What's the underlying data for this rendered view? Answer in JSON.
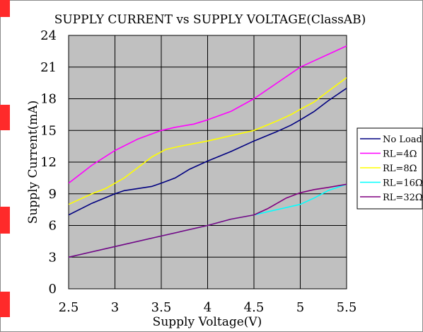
{
  "colors": {
    "plot_bg": "#c0c0c0",
    "grid": "#000000",
    "red_marks": "#ff2a2a"
  },
  "chart_data": {
    "type": "line",
    "title": "SUPPLY CURRENT vs SUPPLY VOLTAGE(ClassAB)",
    "xlabel": "Supply Voltage(V)",
    "ylabel": "Supply Current(mA)",
    "xlim": [
      2.5,
      5.5
    ],
    "ylim": [
      0,
      24
    ],
    "x_ticks": [
      2.5,
      3,
      3.5,
      4,
      4.5,
      5,
      5.5
    ],
    "x_tick_labels": [
      "2.5",
      "3",
      "3.5",
      "4",
      "4.5",
      "5",
      "5.5"
    ],
    "y_ticks": [
      0,
      3,
      6,
      9,
      12,
      15,
      18,
      21,
      24
    ],
    "y_tick_labels": [
      "0",
      "3",
      "6",
      "9",
      "12",
      "15",
      "18",
      "21",
      "24"
    ],
    "grid": true,
    "legend_position": "right",
    "series": [
      {
        "name": "No Load",
        "color": "#000080",
        "points": [
          [
            2.5,
            7.0
          ],
          [
            2.75,
            8.1
          ],
          [
            3.0,
            9.0
          ],
          [
            3.1,
            9.3
          ],
          [
            3.25,
            9.5
          ],
          [
            3.4,
            9.7
          ],
          [
            3.5,
            10.0
          ],
          [
            3.65,
            10.5
          ],
          [
            3.8,
            11.3
          ],
          [
            4.0,
            12.1
          ],
          [
            4.25,
            13.0
          ],
          [
            4.5,
            14.0
          ],
          [
            4.75,
            14.9
          ],
          [
            4.9,
            15.5
          ],
          [
            5.0,
            16.0
          ],
          [
            5.15,
            16.8
          ],
          [
            5.3,
            17.8
          ],
          [
            5.5,
            19.0
          ]
        ]
      },
      {
        "name": "RL=4Ω",
        "color": "#ff00ff",
        "points": [
          [
            2.5,
            10.0
          ],
          [
            2.75,
            11.7
          ],
          [
            3.0,
            13.1
          ],
          [
            3.25,
            14.2
          ],
          [
            3.5,
            15.0
          ],
          [
            3.65,
            15.3
          ],
          [
            3.85,
            15.6
          ],
          [
            4.0,
            16.0
          ],
          [
            4.25,
            16.8
          ],
          [
            4.5,
            18.0
          ],
          [
            4.75,
            19.5
          ],
          [
            5.0,
            21.0
          ],
          [
            5.15,
            21.6
          ],
          [
            5.3,
            22.2
          ],
          [
            5.5,
            23.0
          ]
        ]
      },
      {
        "name": "RL=8Ω",
        "color": "#ffff00",
        "points": [
          [
            2.5,
            8.0
          ],
          [
            2.75,
            9.0
          ],
          [
            2.9,
            9.5
          ],
          [
            3.0,
            10.0
          ],
          [
            3.1,
            10.5
          ],
          [
            3.25,
            11.5
          ],
          [
            3.4,
            12.5
          ],
          [
            3.55,
            13.2
          ],
          [
            3.7,
            13.5
          ],
          [
            4.0,
            14.0
          ],
          [
            4.25,
            14.5
          ],
          [
            4.5,
            15.0
          ],
          [
            4.75,
            15.9
          ],
          [
            4.9,
            16.5
          ],
          [
            5.0,
            17.0
          ],
          [
            5.15,
            17.7
          ],
          [
            5.3,
            18.7
          ],
          [
            5.5,
            20.0
          ]
        ]
      },
      {
        "name": "RL=16Ω",
        "color": "#00ffff",
        "points": [
          [
            2.5,
            3.0
          ],
          [
            3.0,
            4.0
          ],
          [
            3.5,
            5.0
          ],
          [
            4.0,
            6.0
          ],
          [
            4.25,
            6.6
          ],
          [
            4.5,
            7.0
          ],
          [
            4.75,
            7.5
          ],
          [
            5.0,
            8.0
          ],
          [
            5.15,
            8.6
          ],
          [
            5.3,
            9.3
          ],
          [
            5.5,
            9.9
          ]
        ]
      },
      {
        "name": "RL=32Ω",
        "color": "#800080",
        "points": [
          [
            2.5,
            3.0
          ],
          [
            3.0,
            4.0
          ],
          [
            3.5,
            5.0
          ],
          [
            4.0,
            6.0
          ],
          [
            4.25,
            6.6
          ],
          [
            4.5,
            7.0
          ],
          [
            4.65,
            7.6
          ],
          [
            4.85,
            8.6
          ],
          [
            5.0,
            9.1
          ],
          [
            5.15,
            9.4
          ],
          [
            5.3,
            9.6
          ],
          [
            5.5,
            9.9
          ]
        ]
      }
    ]
  }
}
